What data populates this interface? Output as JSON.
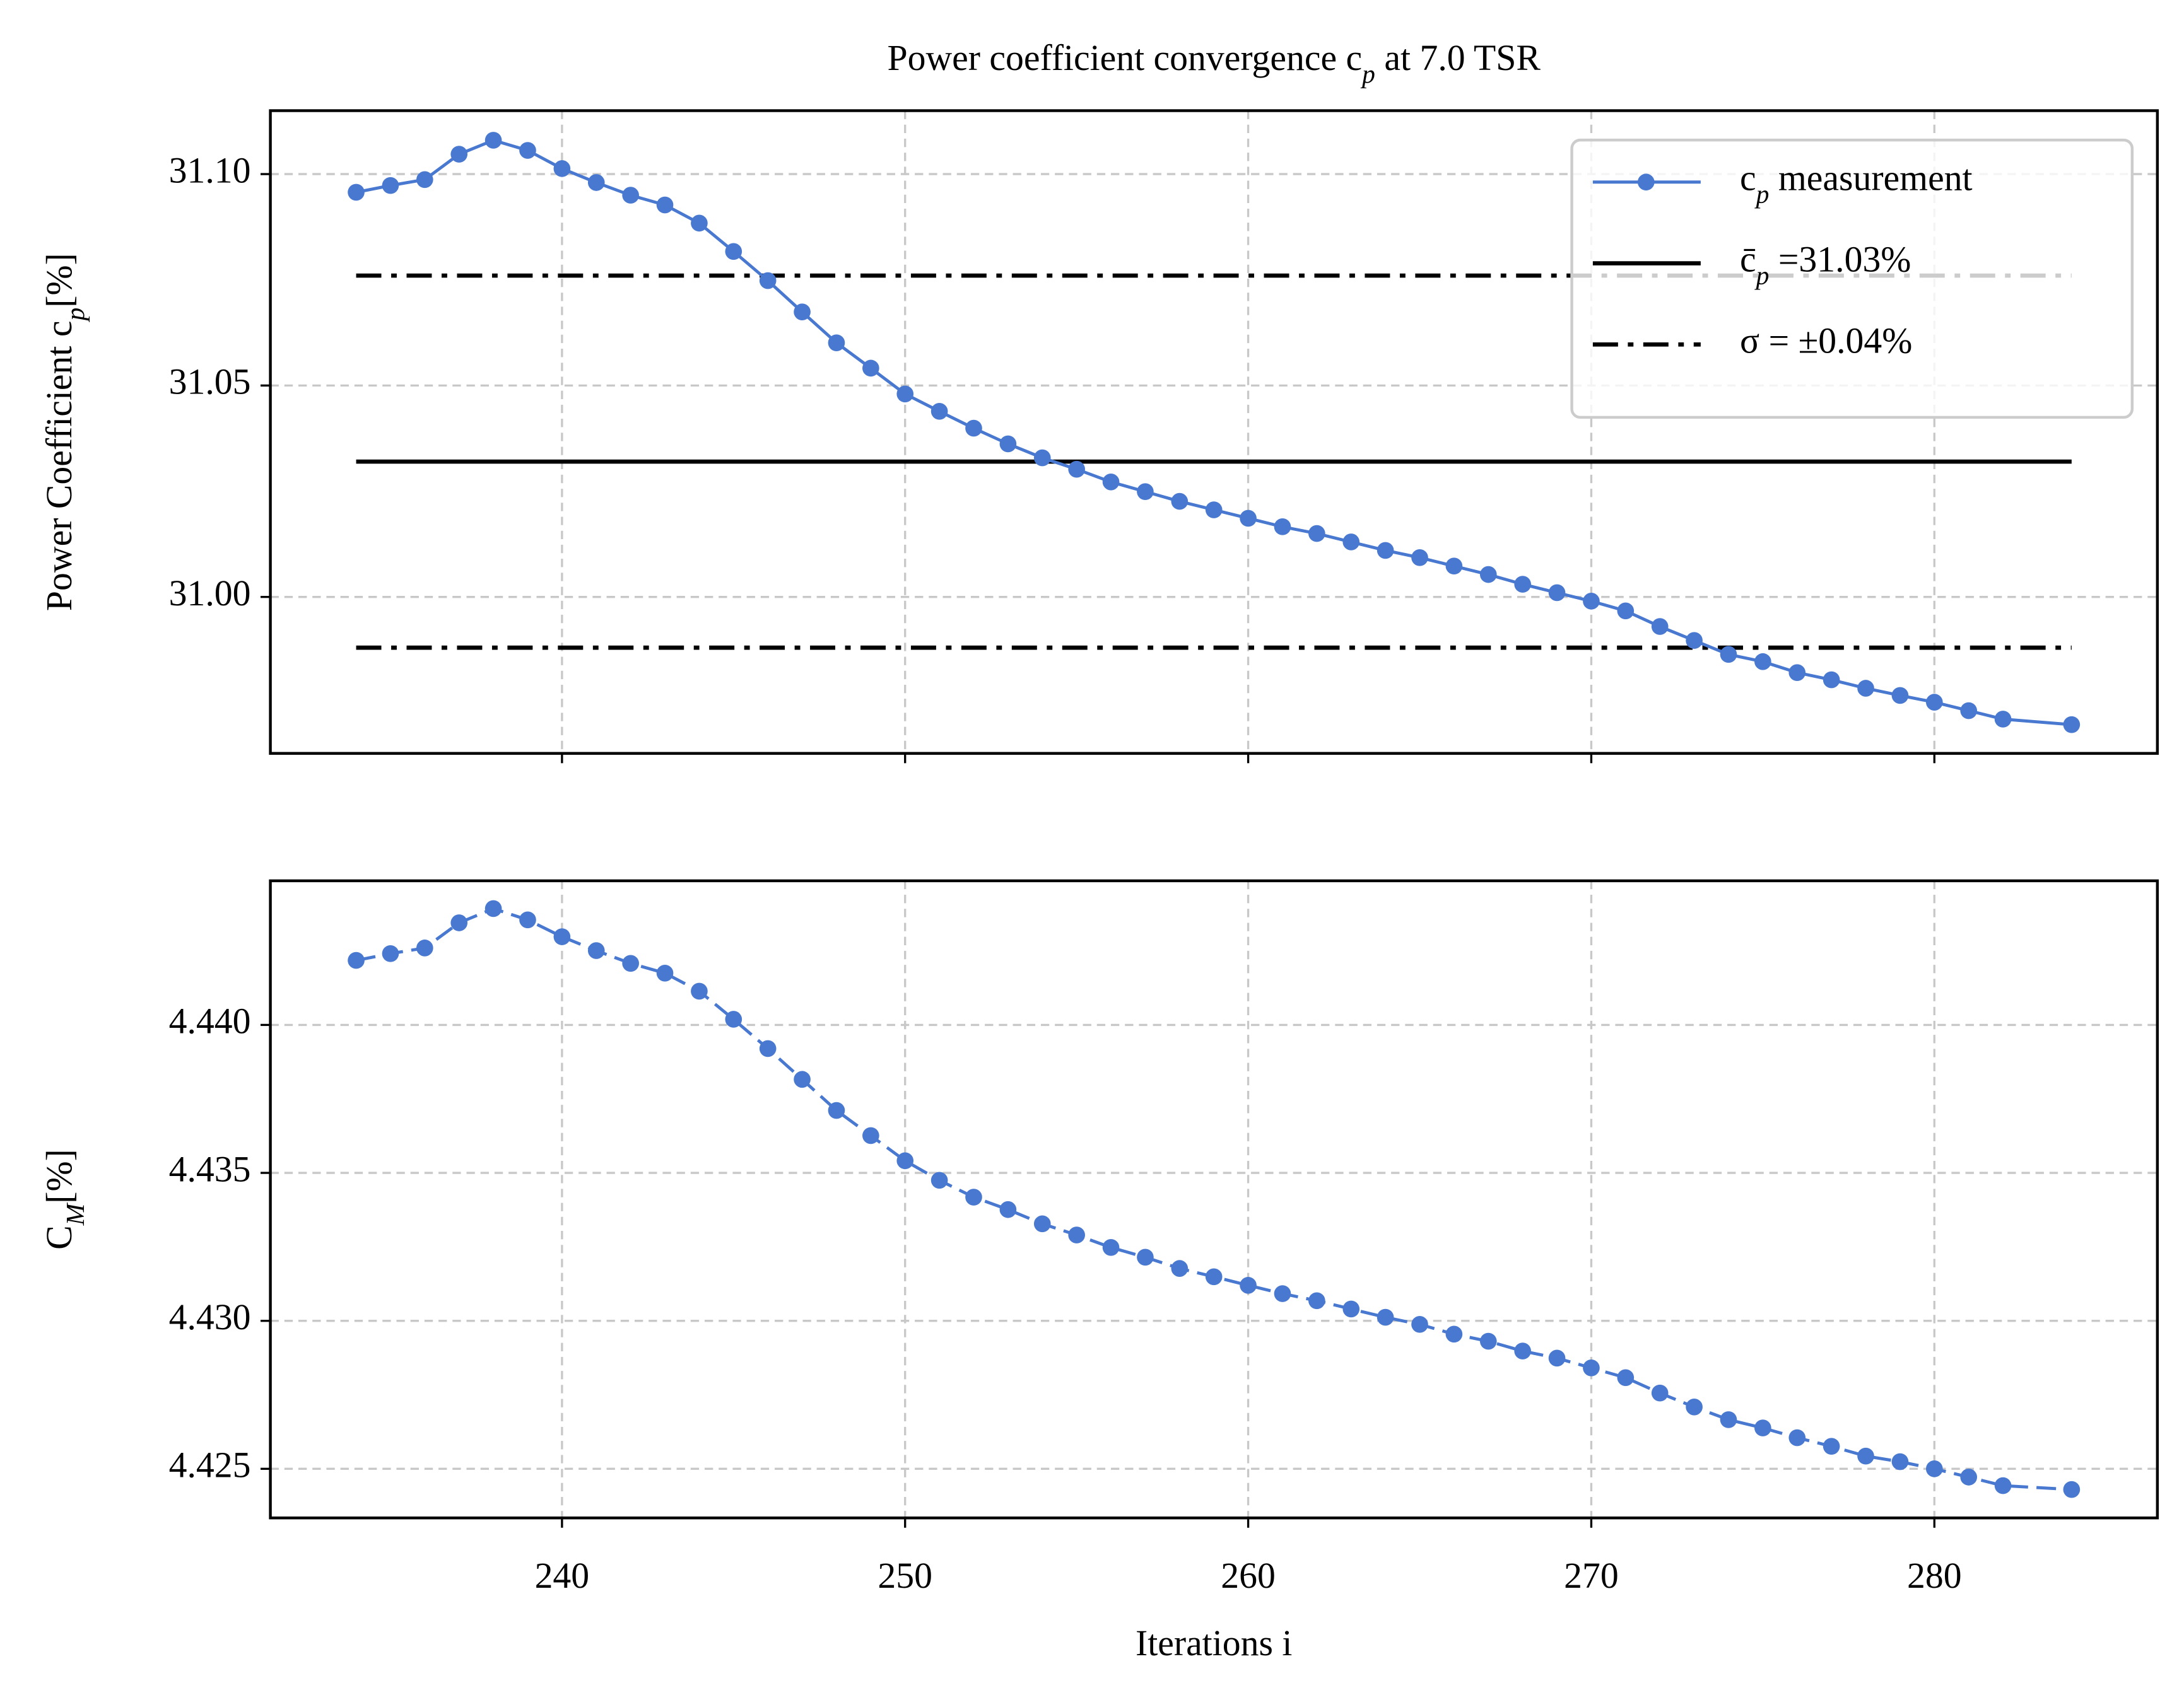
{
  "chart_data": [
    {
      "type": "line",
      "title": "Power coefficient convergence c_p at 7.0 TSR",
      "ylabel": "Power Coefficient c_p[%]",
      "x": [
        234,
        235,
        236,
        237,
        238,
        239,
        240,
        241,
        242,
        243,
        244,
        245,
        246,
        247,
        248,
        249,
        250,
        251,
        252,
        253,
        254,
        255,
        256,
        257,
        258,
        259,
        260,
        261,
        262,
        263,
        264,
        265,
        266,
        267,
        268,
        269,
        270,
        271,
        272,
        273,
        274,
        275,
        276,
        277,
        278,
        279,
        280,
        281,
        282,
        284
      ],
      "series": [
        {
          "name": "c_p measurement",
          "color": "#4878cf",
          "linestyle": "solid",
          "marker": "o",
          "values": [
            31.0957,
            31.0973,
            31.0987,
            31.1047,
            31.108,
            31.1056,
            31.1013,
            31.098,
            31.095,
            31.0927,
            31.0884,
            31.0817,
            31.0748,
            31.0674,
            31.0601,
            31.0541,
            31.048,
            31.0439,
            31.0399,
            31.0362,
            31.0329,
            31.0302,
            31.0272,
            31.0249,
            31.0226,
            31.0206,
            31.0186,
            31.0166,
            31.015,
            31.013,
            31.011,
            31.0093,
            31.0073,
            31.0053,
            31.003,
            31.001,
            30.999,
            30.9967,
            30.993,
            30.9897,
            30.9864,
            30.9847,
            30.9821,
            30.9804,
            30.9784,
            30.9767,
            30.9751,
            30.9731,
            30.9711,
            30.9698
          ]
        }
      ],
      "hlines": [
        {
          "name": "c̄_p =31.03%",
          "color": "#000000",
          "linestyle": "solid",
          "values": [
            31.032
          ],
          "xmin": 234,
          "xmax": 284
        },
        {
          "name": "σ = ±0.04%",
          "color": "#000000",
          "linestyle": "dashdot",
          "values": [
            31.076,
            30.988
          ],
          "xmin": 234,
          "xmax": 284
        }
      ],
      "xlim": [
        231.5,
        286.5
      ],
      "xticks": [
        240,
        250,
        260,
        270,
        280
      ],
      "ylim": [
        30.963,
        31.115
      ],
      "yticks": [
        {
          "value": 31.1,
          "label": "31.10"
        },
        31.05,
        {
          "value": 31.0,
          "label": "31.00"
        }
      ],
      "grid": true,
      "legend": "upper right"
    },
    {
      "type": "line",
      "ylabel": "C_M[%]",
      "xlabel": "Iterations i",
      "x": [
        234,
        235,
        236,
        237,
        238,
        239,
        240,
        241,
        242,
        243,
        244,
        245,
        246,
        247,
        248,
        249,
        250,
        251,
        252,
        253,
        254,
        255,
        256,
        257,
        258,
        259,
        260,
        261,
        262,
        263,
        264,
        265,
        266,
        267,
        268,
        269,
        270,
        271,
        272,
        273,
        274,
        275,
        276,
        277,
        278,
        279,
        280,
        281,
        282,
        284
      ],
      "series": [
        {
          "color": "#4878cf",
          "linestyle": "dashed",
          "marker": "o",
          "values": [
            4.44218,
            4.44241,
            4.4426,
            4.44345,
            4.44393,
            4.44355,
            4.44298,
            4.44251,
            4.44208,
            4.44175,
            4.44114,
            4.44019,
            4.4392,
            4.43816,
            4.43711,
            4.43626,
            4.43541,
            4.43475,
            4.43418,
            4.43376,
            4.43328,
            4.4329,
            4.43248,
            4.43215,
            4.43177,
            4.43149,
            4.4312,
            4.43092,
            4.43068,
            4.4304,
            4.43012,
            4.42988,
            4.42955,
            4.42931,
            4.42898,
            4.42874,
            4.42841,
            4.42808,
            4.42756,
            4.42709,
            4.42666,
            4.42638,
            4.42605,
            4.42576,
            4.42543,
            4.42524,
            4.425,
            4.42472,
            4.42443,
            4.4243
          ]
        }
      ],
      "xlim": [
        231.5,
        286.5
      ],
      "xticks": [
        240,
        250,
        260,
        270,
        280
      ],
      "ylim": [
        4.42334,
        4.44487
      ],
      "yticks": [
        {
          "value": 4.44,
          "label": "4.440"
        },
        4.435,
        {
          "value": 4.43,
          "label": "4.430"
        },
        4.425
      ],
      "grid": true
    }
  ]
}
